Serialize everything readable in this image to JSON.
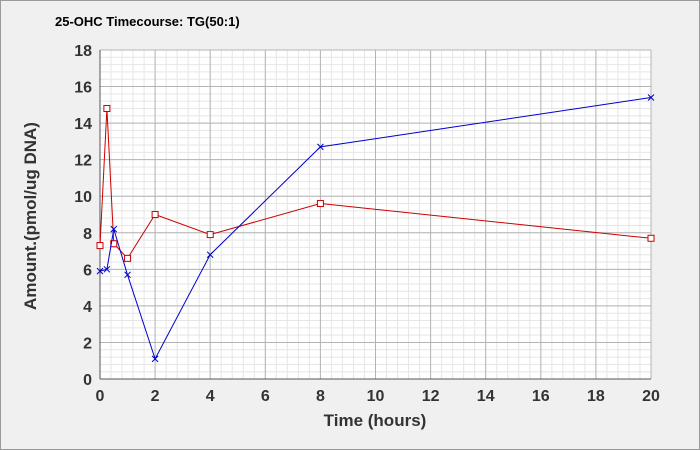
{
  "chart_data": {
    "type": "line",
    "title": "25-OHC Timecourse: TG(50:1)",
    "xlabel": "Time (hours)",
    "ylabel": "Amount.(pmol/ug DNA)",
    "xlim": [
      0,
      20
    ],
    "ylim": [
      0,
      18
    ],
    "xticks": [
      0,
      2,
      4,
      6,
      8,
      10,
      12,
      14,
      16,
      18,
      20
    ],
    "yticks": [
      0,
      2,
      4,
      6,
      8,
      10,
      12,
      14,
      16,
      18
    ],
    "grid": true,
    "legend": "none",
    "series": [
      {
        "color": "#cc0000",
        "marker": "square",
        "x": [
          0,
          0.25,
          0.5,
          1,
          2,
          4,
          8,
          20
        ],
        "y": [
          7.3,
          14.8,
          7.4,
          6.6,
          9.0,
          7.9,
          9.6,
          7.7
        ]
      },
      {
        "color": "#0000cc",
        "marker": "x",
        "x": [
          0,
          0.25,
          0.5,
          1,
          2,
          4,
          8,
          20
        ],
        "y": [
          5.9,
          6.0,
          8.2,
          5.7,
          1.1,
          6.8,
          12.7,
          15.4
        ]
      }
    ]
  }
}
